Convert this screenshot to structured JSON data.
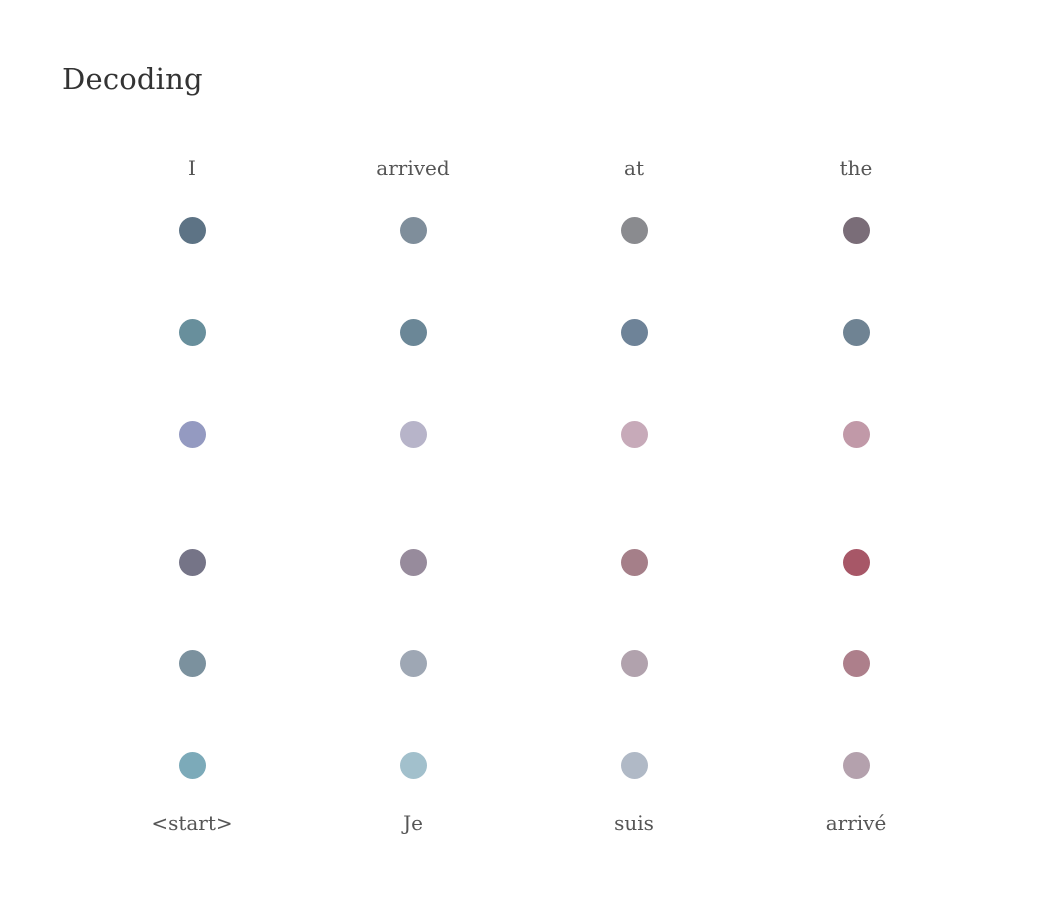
{
  "title": "Decoding",
  "output_tokens": [
    "I",
    "arrived",
    "at",
    "the"
  ],
  "input_tokens": [
    "<start>",
    "Je",
    "suis",
    "arrivé"
  ],
  "dot_colors": [
    [
      "#5d7385",
      "#7f8e9b",
      "#8a8b8f",
      "#7a6d78"
    ],
    [
      "#688f9c",
      "#6b8797",
      "#6e8398",
      "#6f8393"
    ],
    [
      "#949ac1",
      "#b7b4c9",
      "#c7aab9",
      "#c199a8"
    ],
    [
      "#757487",
      "#978b9c",
      "#a57f89",
      "#a75767"
    ],
    [
      "#7b919e",
      "#9ea7b4",
      "#b1a2ad",
      "#ad7f8b"
    ],
    [
      "#7caab9",
      "#a2c0cc",
      "#b0b9c6",
      "#b4a1ad"
    ]
  ]
}
